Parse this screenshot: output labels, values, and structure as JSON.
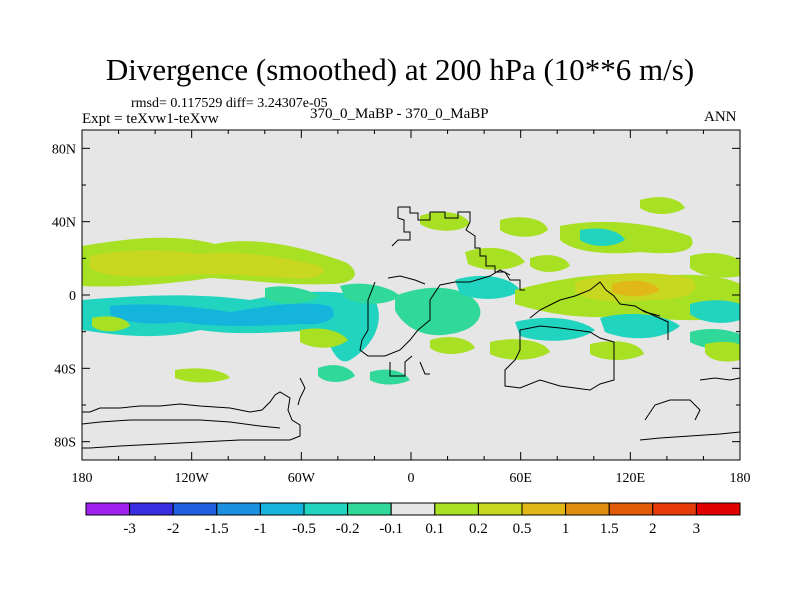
{
  "chart_data": {
    "type": "heatmap",
    "title": "Divergence (smoothed) at 200 hPa (10**6 m/s)",
    "stats": "rmsd= 0.117529 diff= 3.24307e-05",
    "left_label": "Expt = teXvw1-teXvw",
    "center_label": "370_0_MaBP - 370_0_MaBP",
    "right_label": "ANN",
    "x_ticks": [
      "180",
      "120W",
      "60W",
      "0",
      "60E",
      "120E",
      "180"
    ],
    "y_ticks": [
      "80N",
      "40N",
      "0",
      "40S",
      "80S"
    ],
    "xlim": [
      -180,
      180
    ],
    "ylim": [
      -90,
      90
    ],
    "colorbar": {
      "levels": [
        "-3",
        "-2",
        "-1.5",
        "-1",
        "-0.5",
        "-0.2",
        "-0.1",
        "0.1",
        "0.2",
        "0.5",
        "1",
        "1.5",
        "2",
        "3"
      ],
      "colors": [
        "#a020f0",
        "#3a2ce0",
        "#1f5fe0",
        "#1e90e0",
        "#14b4dc",
        "#20d4c0",
        "#30d89a",
        "#e6e6e6",
        "#a8e024",
        "#c8d820",
        "#e0b818",
        "#e09010",
        "#e05a08",
        "#e63a08",
        "#e00000"
      ]
    }
  }
}
